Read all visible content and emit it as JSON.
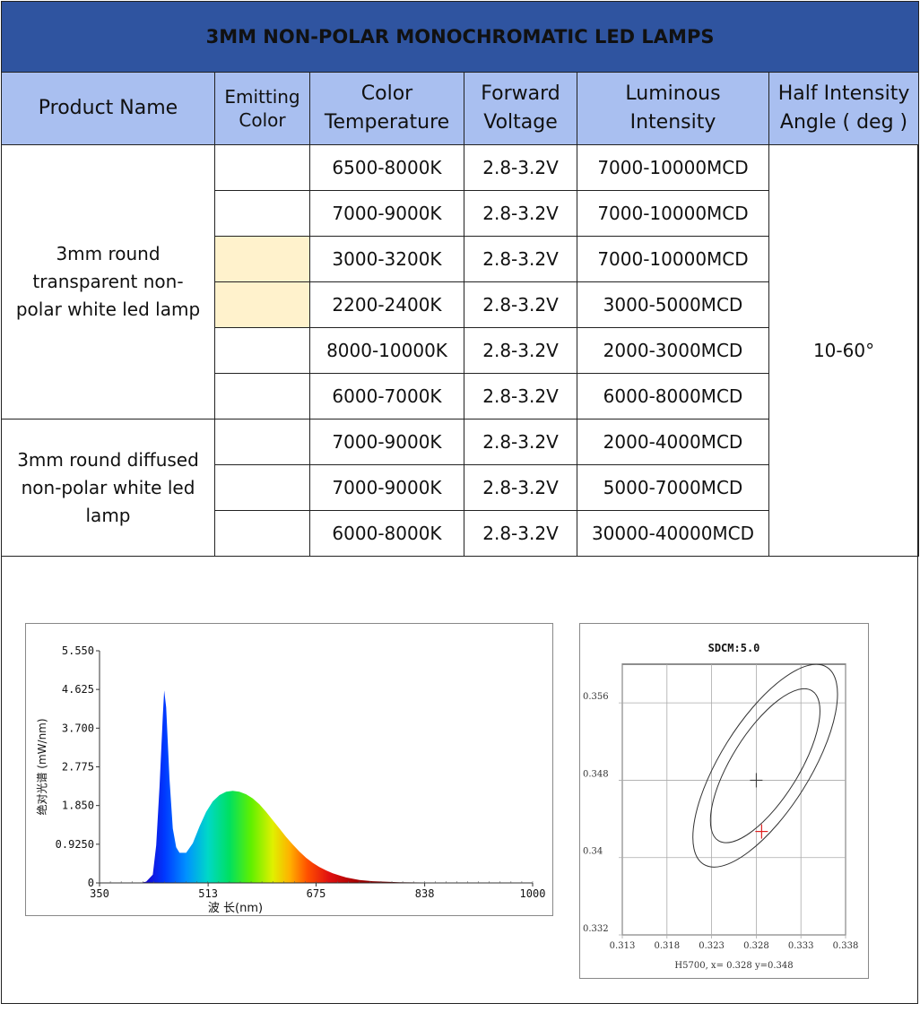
{
  "title": "3MM NON-POLAR MONOCHROMATIC  LED LAMPS",
  "headers": {
    "product_name": "Product Name",
    "emitting_color": [
      "Emitting",
      "Color"
    ],
    "color_temperature": [
      "Color",
      "Temperature"
    ],
    "forward_voltage": [
      "Forward",
      "Voltage"
    ],
    "luminous_intensity": [
      "Luminous",
      "Intensity"
    ],
    "half_intensity_angle": [
      "Half Intensity",
      "Angle ( deg )"
    ]
  },
  "products": [
    {
      "name": [
        "3mm round",
        "transparent non-",
        "polar white led lamp"
      ]
    },
    {
      "name": [
        "3mm round diffused",
        "non-polar white led",
        "lamp"
      ]
    }
  ],
  "rows": [
    {
      "color_temp": "6500-8000K",
      "voltage": "2.8-3.2V",
      "intensity": "7000-10000MCD",
      "swatch": "#ffffff"
    },
    {
      "color_temp": "7000-9000K",
      "voltage": "2.8-3.2V",
      "intensity": "7000-10000MCD",
      "swatch": "#ffffff"
    },
    {
      "color_temp": "3000-3200K",
      "voltage": "2.8-3.2V",
      "intensity": "7000-10000MCD",
      "swatch": "#fff2cc"
    },
    {
      "color_temp": "2200-2400K",
      "voltage": "2.8-3.2V",
      "intensity": "3000-5000MCD",
      "swatch": "#fff2cc"
    },
    {
      "color_temp": "8000-10000K",
      "voltage": "2.8-3.2V",
      "intensity": "2000-3000MCD",
      "swatch": "#ffffff"
    },
    {
      "color_temp": "6000-7000K",
      "voltage": "2.8-3.2V",
      "intensity": "6000-8000MCD",
      "swatch": "#ffffff"
    },
    {
      "color_temp": "7000-9000K",
      "voltage": "2.8-3.2V",
      "intensity": "2000-4000MCD",
      "swatch": "#ffffff"
    },
    {
      "color_temp": "7000-9000K",
      "voltage": "2.8-3.2V",
      "intensity": "5000-7000MCD",
      "swatch": "#ffffff"
    },
    {
      "color_temp": "6000-8000K",
      "voltage": "2.8-3.2V",
      "intensity": "30000-40000MCD",
      "swatch": "#ffffff"
    }
  ],
  "half_angle": "10-60°",
  "colors": {
    "title_bg": "#2f54a0",
    "header_bg": "#a9bff0",
    "swatch_warm": "#fff2cc"
  },
  "chart_data": [
    {
      "type": "area",
      "title": "",
      "xlabel": "波 长(nm)",
      "ylabel": "绝对光谱 (mW/nm)",
      "x_ticks": [
        "350",
        "513",
        "675",
        "838",
        "1000"
      ],
      "y_ticks": [
        "0",
        "0.9250",
        "1.850",
        "2.775",
        "3.700",
        "4.625",
        "5.550"
      ],
      "xlim": [
        350,
        1000
      ],
      "ylim": [
        0,
        5.55
      ],
      "x": [
        350,
        410,
        420,
        430,
        435,
        440,
        445,
        447,
        450,
        455,
        460,
        465,
        470,
        480,
        490,
        500,
        510,
        520,
        530,
        540,
        550,
        560,
        570,
        580,
        590,
        600,
        610,
        620,
        630,
        640,
        650,
        660,
        670,
        680,
        690,
        700,
        720,
        740,
        760,
        800,
        850,
        900,
        950,
        1000
      ],
      "values": [
        0,
        0.0,
        0.03,
        0.2,
        0.9,
        2.3,
        4.0,
        4.6,
        4.2,
        2.5,
        1.3,
        0.85,
        0.72,
        0.72,
        0.95,
        1.35,
        1.7,
        1.95,
        2.1,
        2.18,
        2.2,
        2.18,
        2.12,
        2.02,
        1.88,
        1.7,
        1.5,
        1.3,
        1.1,
        0.92,
        0.75,
        0.6,
        0.48,
        0.38,
        0.3,
        0.23,
        0.13,
        0.07,
        0.04,
        0.015,
        0.008,
        0.005,
        0.005,
        0
      ]
    },
    {
      "type": "scatter",
      "title": "SDCM:5.0",
      "x_ticks": [
        "0.313",
        "0.318",
        "0.323",
        "0.328",
        "0.333",
        "0.338"
      ],
      "y_ticks": [
        "0.332",
        "0.34",
        "0.348",
        "0.356"
      ],
      "xlim": [
        0.313,
        0.338
      ],
      "ylim": [
        0.332,
        0.36
      ],
      "caption": "H5700,  x= 0.328  y=0.348",
      "center": [
        0.328,
        0.348
      ],
      "measured_point": [
        0.3286,
        0.3427
      ],
      "ellipses": [
        {
          "cx": 0.329,
          "cy": 0.3495,
          "a": 0.0125,
          "b": 0.0048,
          "angle_deg": 58
        },
        {
          "cx": 0.329,
          "cy": 0.3495,
          "a": 0.0095,
          "b": 0.0036,
          "angle_deg": 58
        }
      ]
    }
  ]
}
